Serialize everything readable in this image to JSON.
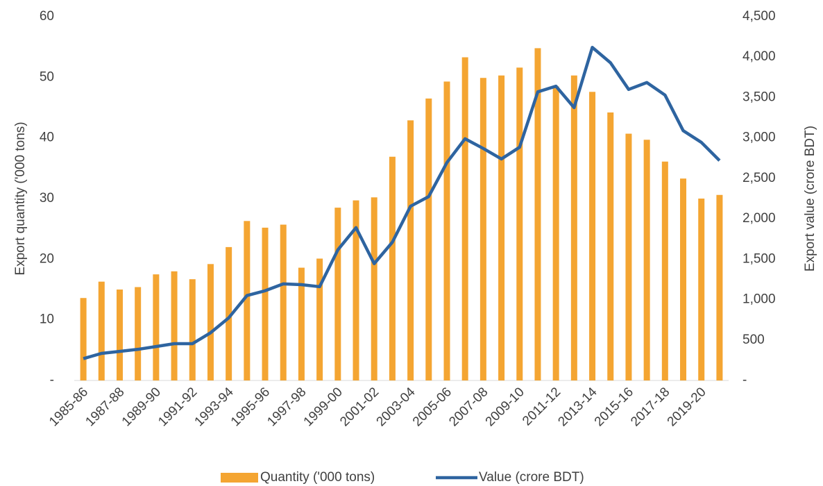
{
  "chart_data": {
    "type": "bar-line",
    "y_label": "Export quantity ('000 tons)",
    "y2_label": "Export value (crore BDT)",
    "categories": [
      "1985-86",
      null,
      "1987-88",
      null,
      "1989-90",
      null,
      "1991-92",
      null,
      "1993-94",
      null,
      "1995-96",
      null,
      "1997-98",
      null,
      "1999-00",
      null,
      "2001-02",
      null,
      "2003-04",
      null,
      "2005-06",
      null,
      "2007-08",
      null,
      "2009-10",
      null,
      "2011-12",
      null,
      "2013-14",
      null,
      "2015-16",
      null,
      "2017-18",
      null,
      "2019-20",
      null
    ],
    "series": [
      {
        "name": "Quantity ('000 tons)",
        "color": "#f4a532",
        "kind": "bar",
        "axis": "y",
        "values": [
          13.6,
          16.3,
          15,
          15.4,
          17.5,
          18,
          16.7,
          19.2,
          22,
          26.3,
          25.2,
          25.7,
          18.6,
          20.1,
          28.5,
          29.7,
          30.2,
          36.9,
          42.9,
          46.5,
          49.3,
          53.3,
          49.9,
          50.3,
          51.6,
          54.8,
          48.5,
          50.3,
          47.6,
          44.2,
          40.7,
          39.7,
          36.1,
          33.3,
          30,
          30.6
        ]
      },
      {
        "name": "Value (crore BDT)",
        "color": "#2e64a0",
        "kind": "line",
        "axis": "y2",
        "values": [
          270,
          335,
          360,
          385,
          420,
          455,
          455,
          590,
          775,
          1050,
          1110,
          1195,
          1185,
          1160,
          1615,
          1890,
          1445,
          1710,
          2155,
          2275,
          2695,
          2990,
          2870,
          2740,
          2885,
          3570,
          3640,
          3375,
          4120,
          3930,
          3600,
          3685,
          3530,
          3090,
          2945,
          2720
        ]
      }
    ],
    "ylim": [
      0,
      60
    ],
    "yticks": [
      {
        "value": 0,
        "label": "-"
      },
      10,
      20,
      30,
      40,
      50,
      60
    ],
    "y2lim": [
      0,
      4500
    ],
    "y2ticks": [
      {
        "value": 0,
        "label": "-"
      },
      500,
      {
        "value": 1000,
        "label": "1,000"
      },
      {
        "value": 1500,
        "label": "1,500"
      },
      {
        "value": 2000,
        "label": "2,000"
      },
      {
        "value": 2500,
        "label": "2,500"
      },
      {
        "value": 3000,
        "label": "3,000"
      },
      {
        "value": 3500,
        "label": "3,500"
      },
      {
        "value": 4000,
        "label": "4,000"
      },
      {
        "value": 4500,
        "label": "4,500"
      }
    ],
    "grid": false,
    "legend": "bottom"
  }
}
